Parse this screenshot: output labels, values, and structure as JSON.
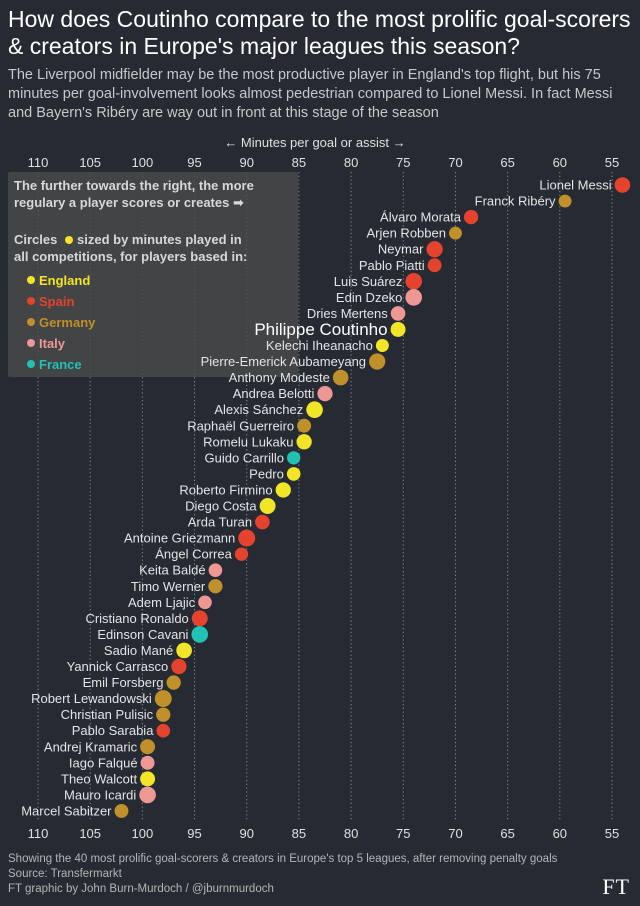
{
  "title": "How does Coutinho compare to the most prolific goal-scorers & creators in Europe's major leagues this season?",
  "subtitle": "The Liverpool midfielder may be the most productive player in England's top flight, but his 75 minutes per goal-involvement looks almost pedestrian compared to Lionel Messi. In fact Messi and Bayern's Ribéry are way out in front at this stage of the season",
  "footer": {
    "note": "Showing the 40 most prolific goal-scorers & creators in Europe's top 5 leagues, after removing penalty goals",
    "source": "Source: Transfermarkt",
    "credit": "FT graphic by John Burn-Murdoch / @jburnmurdoch",
    "logo": "FT"
  },
  "legend": {
    "line1": "The further towards the right, the more",
    "line2": "regulary a player scores or creates ➡",
    "size_line1_a": "Circles",
    "size_line1_b": "sized by minutes played in",
    "size_line2": "all competitions, for players based in:",
    "items": [
      {
        "label": "England",
        "color": "#f2e528"
      },
      {
        "label": "Spain",
        "color": "#e5432e"
      },
      {
        "label": "Germany",
        "color": "#c0902a"
      },
      {
        "label": "Italy",
        "color": "#ee9896"
      },
      {
        "label": "France",
        "color": "#21c2b4"
      }
    ]
  },
  "colors": {
    "England": "#f2e528",
    "Spain": "#e5432e",
    "Germany": "#c0902a",
    "Italy": "#ee9896",
    "France": "#21c2b4"
  },
  "chart_data": {
    "type": "scatter",
    "axis_label": "← Minutes per goal or assist →",
    "xlim": [
      112,
      53
    ],
    "x_ticks": [
      110,
      105,
      100,
      95,
      90,
      85,
      80,
      75,
      70,
      65,
      60,
      55
    ],
    "grid": "vertical dotted",
    "highlight": "Philippe Coutinho",
    "players": [
      {
        "name": "Lionel Messi",
        "x": 54,
        "league": "Spain",
        "size": 1.0
      },
      {
        "name": "Franck Ribéry",
        "x": 59.5,
        "league": "Germany",
        "size": 0.6
      },
      {
        "name": "Álvaro Morata",
        "x": 68.5,
        "league": "Spain",
        "size": 0.8
      },
      {
        "name": "Arjen Robben",
        "x": 70,
        "league": "Germany",
        "size": 0.6
      },
      {
        "name": "Neymar",
        "x": 72,
        "league": "Spain",
        "size": 1.1
      },
      {
        "name": "Pablo Piatti",
        "x": 72,
        "league": "Spain",
        "size": 0.75
      },
      {
        "name": "Luis Suárez",
        "x": 74,
        "league": "Spain",
        "size": 1.15
      },
      {
        "name": "Edin Dzeko",
        "x": 74,
        "league": "Italy",
        "size": 1.15
      },
      {
        "name": "Dries Mertens",
        "x": 75.5,
        "league": "Italy",
        "size": 0.85
      },
      {
        "name": "Philippe Coutinho",
        "x": 75.5,
        "league": "England",
        "size": 0.9
      },
      {
        "name": "Kelechi Iheanacho",
        "x": 77,
        "league": "England",
        "size": 0.6
      },
      {
        "name": "Pierre-Emerick Aubameyang",
        "x": 77.5,
        "league": "Germany",
        "size": 1.1
      },
      {
        "name": "Anthony Modeste",
        "x": 81,
        "league": "Germany",
        "size": 1.0
      },
      {
        "name": "Andrea Belotti",
        "x": 82.5,
        "league": "Italy",
        "size": 0.95
      },
      {
        "name": "Alexis Sánchez",
        "x": 83.5,
        "league": "England",
        "size": 1.15
      },
      {
        "name": "Raphaël Guerreiro",
        "x": 84.5,
        "league": "Germany",
        "size": 0.75
      },
      {
        "name": "Romelu Lukaku",
        "x": 84.5,
        "league": "England",
        "size": 0.95
      },
      {
        "name": "Guido Carrillo",
        "x": 85.5,
        "league": "France",
        "size": 0.65
      },
      {
        "name": "Pedro",
        "x": 85.5,
        "league": "England",
        "size": 0.7
      },
      {
        "name": "Roberto Firmino",
        "x": 86.5,
        "league": "England",
        "size": 0.95
      },
      {
        "name": "Diego Costa",
        "x": 88,
        "league": "England",
        "size": 1.05
      },
      {
        "name": "Arda Turan",
        "x": 88.5,
        "league": "Spain",
        "size": 0.85
      },
      {
        "name": "Antoine Griezmann",
        "x": 90,
        "league": "Spain",
        "size": 1.2
      },
      {
        "name": "Ángel Correa",
        "x": 90.5,
        "league": "Spain",
        "size": 0.65
      },
      {
        "name": "Keita Baldé",
        "x": 93,
        "league": "Italy",
        "size": 0.7
      },
      {
        "name": "Timo Werner",
        "x": 93,
        "league": "Germany",
        "size": 0.8
      },
      {
        "name": "Adem Ljajic",
        "x": 94,
        "league": "Italy",
        "size": 0.7
      },
      {
        "name": "Cristiano Ronaldo",
        "x": 94.5,
        "league": "Spain",
        "size": 1.05
      },
      {
        "name": "Edinson Cavani",
        "x": 94.5,
        "league": "France",
        "size": 1.15
      },
      {
        "name": "Sadio Mané",
        "x": 96,
        "league": "England",
        "size": 1.0
      },
      {
        "name": "Yannick Carrasco",
        "x": 96.5,
        "league": "Spain",
        "size": 0.95
      },
      {
        "name": "Emil Forsberg",
        "x": 97,
        "league": "Germany",
        "size": 0.8
      },
      {
        "name": "Robert Lewandowski",
        "x": 98,
        "league": "Germany",
        "size": 1.2
      },
      {
        "name": "Christian Pulisic",
        "x": 98,
        "league": "Germany",
        "size": 0.8
      },
      {
        "name": "Pablo Sarabia",
        "x": 98,
        "league": "Spain",
        "size": 0.7
      },
      {
        "name": "Andrej Kramaric",
        "x": 99.5,
        "league": "Germany",
        "size": 0.9
      },
      {
        "name": "Iago Falqué",
        "x": 99.5,
        "league": "Italy",
        "size": 0.75
      },
      {
        "name": "Theo Walcott",
        "x": 99.5,
        "league": "England",
        "size": 0.9
      },
      {
        "name": "Mauro Icardi",
        "x": 99.5,
        "league": "Italy",
        "size": 1.15
      },
      {
        "name": "Marcel Sabitzer",
        "x": 102,
        "league": "Germany",
        "size": 0.75
      }
    ]
  }
}
